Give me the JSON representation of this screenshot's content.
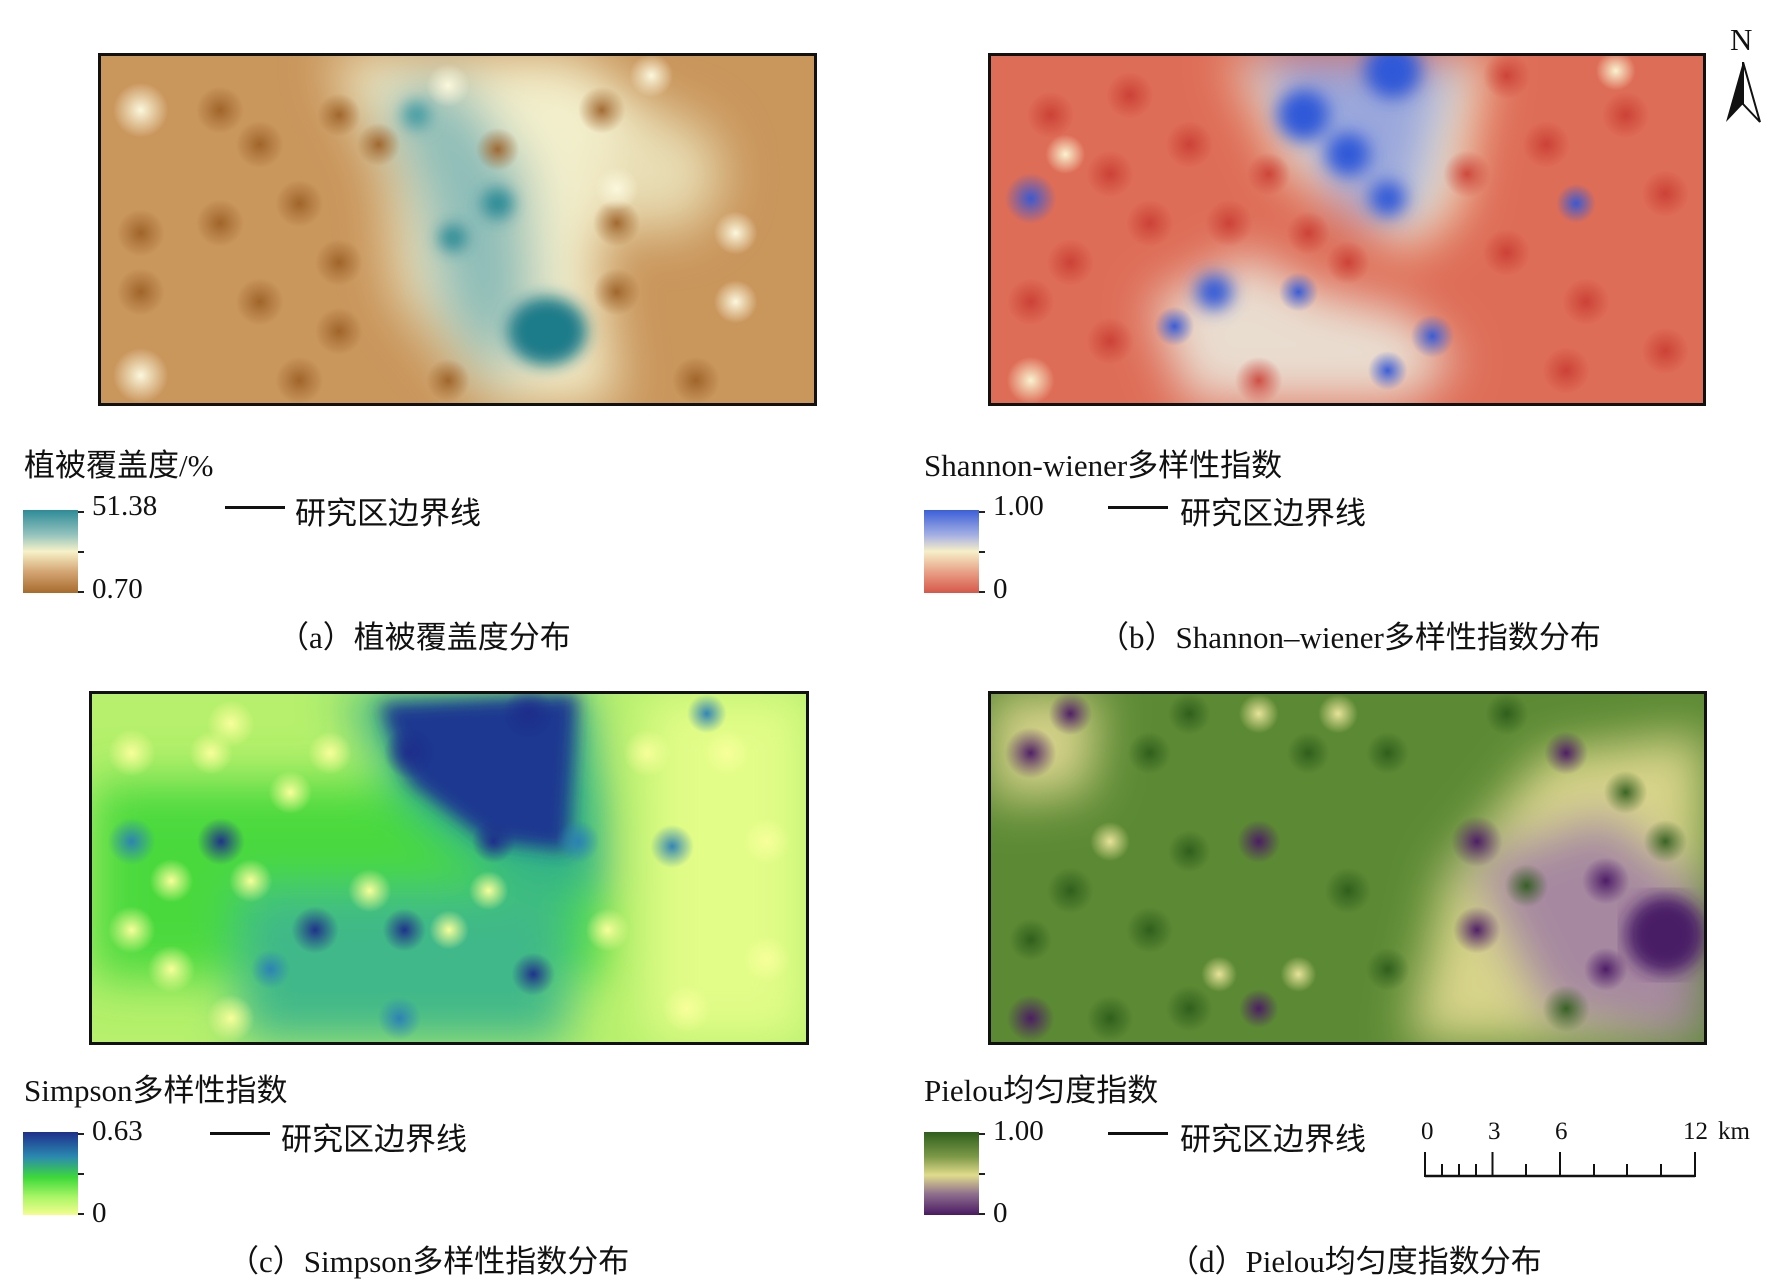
{
  "colors": {
    "coverage": {
      "high": "#2c8c97",
      "mid": "#f7f2c8",
      "low": "#a86a2c"
    },
    "shannon": {
      "high": "#3a5fd8",
      "mid": "#f6f0c8",
      "low": "#d6574a"
    },
    "simpson": {
      "high": "#1e2f8c",
      "mid": "#3ed93a",
      "low": "#f4fd8e"
    },
    "pielou": {
      "high": "#2e5e1c",
      "mid": "#e0dc8c",
      "low": "#4a1a62"
    }
  },
  "panels": {
    "a": {
      "legend_title": "植被覆盖度/%",
      "max": "51.38",
      "min": "0.70",
      "boundary_label": "研究区边界线",
      "caption": "（a）植被覆盖度分布"
    },
    "b": {
      "legend_title": "Shannon-wiener多样性指数",
      "max": "1.00",
      "min": "0",
      "boundary_label": "研究区边界线",
      "caption": "（b）Shannon–wiener多样性指数分布"
    },
    "c": {
      "legend_title": "Simpson多样性指数",
      "max": "0.63",
      "min": "0",
      "boundary_label": "研究区边界线",
      "caption": "（c）Simpson多样性指数分布"
    },
    "d": {
      "legend_title": "Pielou均匀度指数",
      "max": "1.00",
      "min": "0",
      "boundary_label": "研究区边界线",
      "caption": "（d）Pielou均匀度指数分布"
    }
  },
  "north_arrow": {
    "label": "N"
  },
  "scale_bar": {
    "labels": [
      "0",
      "3",
      "6",
      "12"
    ],
    "unit": "km"
  }
}
